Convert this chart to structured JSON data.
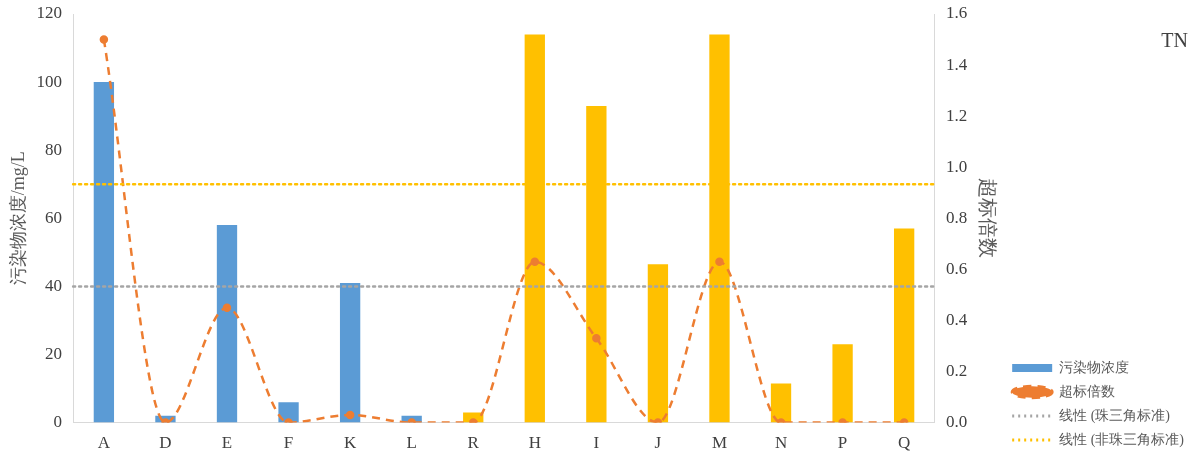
{
  "chart_data": {
    "type": "bar",
    "title": "TN",
    "ylabel": "污染物浓度/mg/L",
    "y2label": "超标倍数",
    "categories": [
      "A",
      "D",
      "E",
      "F",
      "K",
      "L",
      "R",
      "H",
      "I",
      "J",
      "M",
      "N",
      "P",
      "Q"
    ],
    "series": [
      {
        "name": "污染物浓度",
        "colors": [
          "#5b9bd5",
          "#5b9bd5",
          "#5b9bd5",
          "#5b9bd5",
          "#5b9bd5",
          "#5b9bd5",
          "#ffc000",
          "#ffc000",
          "#ffc000",
          "#ffc000",
          "#ffc000",
          "#ffc000",
          "#ffc000",
          "#ffc000"
        ],
        "values": [
          100,
          2,
          58,
          6,
          41,
          2,
          3,
          114,
          93,
          46.5,
          114,
          11.5,
          23,
          57
        ]
      },
      {
        "name": "超标倍数",
        "type": "line",
        "axis": "y2",
        "color": "#ed7d31",
        "marker": "circle",
        "line_style": "dashed",
        "values": [
          1.5,
          0,
          0.45,
          0,
          0.03,
          0,
          0,
          0.63,
          0.33,
          0,
          0.63,
          0,
          0,
          0
        ]
      }
    ],
    "ylim": [
      0,
      120
    ],
    "yticks": [
      0,
      20,
      40,
      60,
      80,
      100,
      120
    ],
    "y2lim": [
      0,
      1.6
    ],
    "y2ticks": [
      {
        "value": 0,
        "label": "0.0"
      },
      {
        "value": 0.2,
        "label": "0.2"
      },
      {
        "value": 0.4,
        "label": "0.4"
      },
      {
        "value": 0.6,
        "label": "0.6"
      },
      {
        "value": 0.8,
        "label": "0.8"
      },
      {
        "value": 1,
        "label": "1.0"
      },
      {
        "value": 1.2,
        "label": "1.2"
      },
      {
        "value": 1.4,
        "label": "1.4"
      },
      {
        "value": 1.6,
        "label": "1.6"
      }
    ],
    "ref_lines": [
      {
        "axis": "y",
        "value": 40,
        "label": "线性 (珠三角标准)",
        "color": "#a5a5a5",
        "line_style": "dotted"
      },
      {
        "axis": "y",
        "value": 70,
        "label": "线性 (非珠三角标准)",
        "color": "#ffc000",
        "line_style": "dotted"
      }
    ],
    "legend": "bottom right",
    "grid": false
  }
}
